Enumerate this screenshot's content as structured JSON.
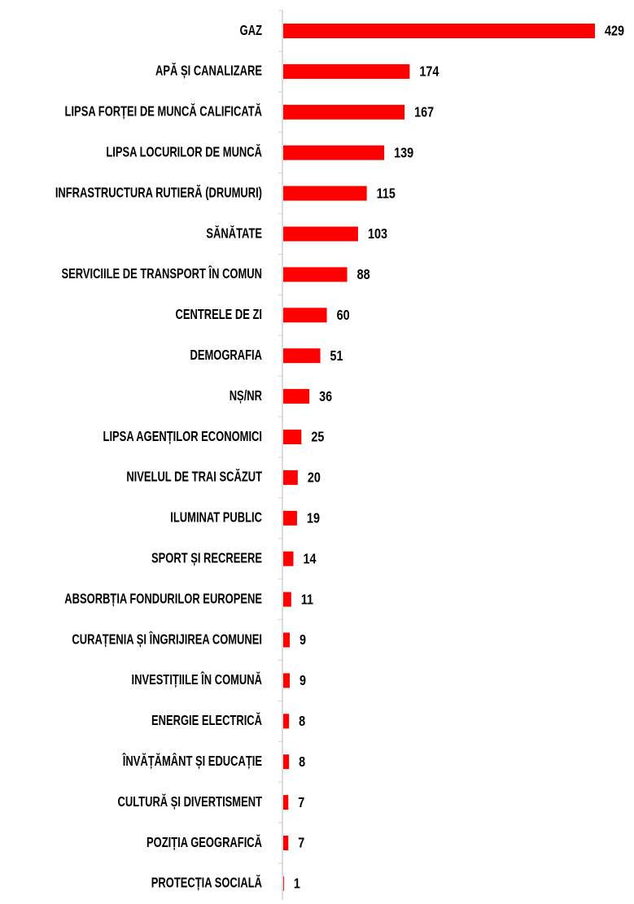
{
  "chart_data": {
    "type": "bar",
    "orientation": "horizontal",
    "color": "#ff0000",
    "categories": [
      "GAZ",
      "APĂ ȘI CANALIZARE",
      "LIPSA FORȚEI DE MUNCĂ CALIFICATĂ",
      "LIPSA LOCURILOR DE MUNCĂ",
      "INFRASTRUCTURA RUTIERĂ (DRUMURI)",
      "SĂNĂTATE",
      "SERVICIILE DE TRANSPORT ÎN COMUN",
      "CENTRELE DE ZI",
      "DEMOGRAFIA",
      "NȘ/NR",
      "LIPSA AGENȚILOR ECONOMICI",
      "NIVELUL DE TRAI SCĂZUT",
      "ILUMINAT PUBLIC",
      "SPORT ȘI RECREERE",
      "ABSORBȚIA FONDURILOR EUROPENE",
      "CURAȚENIA ȘI ÎNGRIJIREA COMUNEI",
      "INVESTIȚIILE ÎN COMUNĂ",
      "ENERGIE ELECTRICĂ",
      "ÎNVĂȚĂMÂNT ȘI EDUCAȚIE",
      "CULTURĂ ȘI DIVERTISMENT",
      "POZIȚIA GEOGRAFICĂ",
      "PROTECȚIA SOCIALĂ"
    ],
    "values": [
      429,
      174,
      167,
      139,
      115,
      103,
      88,
      60,
      51,
      36,
      25,
      20,
      19,
      14,
      11,
      9,
      9,
      8,
      8,
      7,
      7,
      1
    ]
  }
}
